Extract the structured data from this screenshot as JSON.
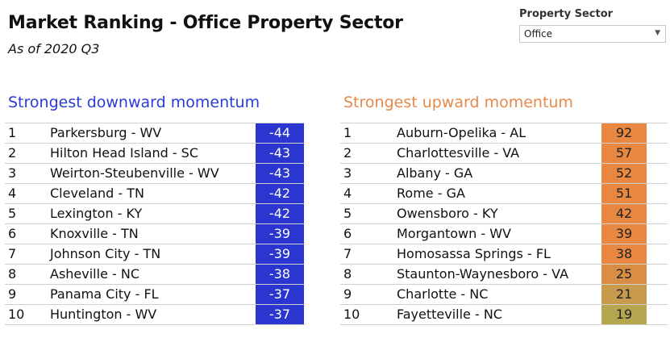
{
  "header": {
    "title": "Market Ranking - Office Property Sector",
    "subtitle": "As of 2020 Q3"
  },
  "filter": {
    "label": "Property Sector",
    "selected": "Office"
  },
  "downward": {
    "title": "Strongest downward momentum",
    "color": "#2b36d1",
    "rows": [
      {
        "rank": "1",
        "market": "Parkersburg - WV",
        "value": "-44"
      },
      {
        "rank": "2",
        "market": "Hilton Head Island - SC",
        "value": "-43"
      },
      {
        "rank": "3",
        "market": "Weirton-Steubenville - WV",
        "value": "-43"
      },
      {
        "rank": "4",
        "market": "Cleveland - TN",
        "value": "-42"
      },
      {
        "rank": "5",
        "market": "Lexington - KY",
        "value": "-42"
      },
      {
        "rank": "6",
        "market": "Knoxville - TN",
        "value": "-39"
      },
      {
        "rank": "7",
        "market": "Johnson City - TN",
        "value": "-39"
      },
      {
        "rank": "8",
        "market": "Asheville - NC",
        "value": "-38"
      },
      {
        "rank": "9",
        "market": "Panama City - FL",
        "value": "-37"
      },
      {
        "rank": "10",
        "market": "Huntington - WV",
        "value": "-37"
      }
    ]
  },
  "upward": {
    "title": "Strongest upward momentum",
    "color": "#e8894a",
    "rows": [
      {
        "rank": "1",
        "market": "Auburn-Opelika - AL",
        "value": "92",
        "color": "#e8873f"
      },
      {
        "rank": "2",
        "market": "Charlottesville - VA",
        "value": "57",
        "color": "#e8873f"
      },
      {
        "rank": "3",
        "market": "Albany - GA",
        "value": "52",
        "color": "#e8873f"
      },
      {
        "rank": "4",
        "market": "Rome - GA",
        "value": "51",
        "color": "#e8873f"
      },
      {
        "rank": "5",
        "market": "Owensboro - KY",
        "value": "42",
        "color": "#e8873f"
      },
      {
        "rank": "6",
        "market": "Morgantown - WV",
        "value": "39",
        "color": "#e8873f"
      },
      {
        "rank": "7",
        "market": "Homosassa Springs - FL",
        "value": "38",
        "color": "#e8873f"
      },
      {
        "rank": "8",
        "market": "Staunton-Waynesboro - VA",
        "value": "25",
        "color": "#d98d45"
      },
      {
        "rank": "9",
        "market": "Charlotte - NC",
        "value": "21",
        "color": "#c89a4c"
      },
      {
        "rank": "10",
        "market": "Fayetteville - NC",
        "value": "19",
        "color": "#b5a650"
      }
    ]
  }
}
